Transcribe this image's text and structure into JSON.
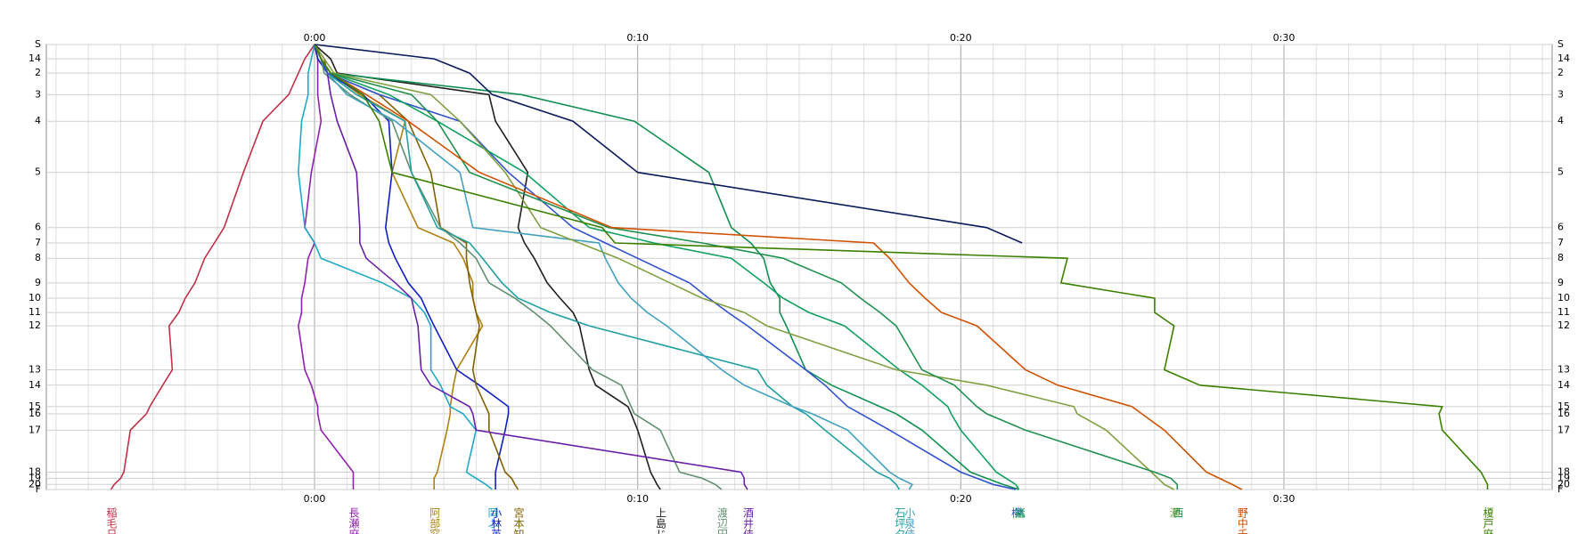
{
  "chart_data": {
    "type": "line",
    "orientation": "vertical-time",
    "grid": true,
    "xlim": [
      -8.3,
      38.3
    ],
    "xticks": [
      {
        "value": 0,
        "label": "0:00"
      },
      {
        "value": 10,
        "label": "0:10"
      },
      {
        "value": 20,
        "label": "0:20"
      },
      {
        "value": 30,
        "label": "0:30"
      }
    ],
    "xminorticks": [
      -8,
      -7,
      -6,
      -5,
      -4,
      -3,
      -2,
      -1,
      0,
      1,
      2,
      3,
      4,
      5,
      6,
      7,
      8,
      9,
      10,
      11,
      12,
      13,
      14,
      15,
      16,
      17,
      18,
      19,
      20,
      21,
      22,
      23,
      24,
      25,
      26,
      27,
      28,
      29,
      30,
      31,
      32,
      33,
      34,
      35,
      36,
      37,
      38
    ],
    "ylim": [
      0,
      435
    ],
    "yticks": [
      {
        "value": 0,
        "label": "S"
      },
      14,
      {
        "value": 28,
        "label": "2"
      },
      {
        "value": 49,
        "label": "3"
      },
      {
        "value": 75,
        "label": "4"
      },
      {
        "value": 125,
        "label": "5"
      },
      {
        "value": 179,
        "label": "6"
      },
      {
        "value": 194,
        "label": "7"
      },
      {
        "value": 209,
        "label": "8"
      },
      {
        "value": 233,
        "label": "9"
      },
      {
        "value": 248,
        "label": "10"
      },
      {
        "value": 262,
        "label": "11"
      },
      {
        "value": 275,
        "label": "12"
      },
      {
        "value": 318,
        "label": "13"
      },
      {
        "value": 333,
        "label": "14"
      },
      {
        "value": 354,
        "label": "15"
      },
      {
        "value": 361,
        "label": "16"
      },
      {
        "value": 377,
        "label": "17"
      },
      {
        "value": 418,
        "label": "18"
      },
      {
        "value": 424,
        "label": "19"
      },
      {
        "value": 430,
        "label": "20"
      },
      {
        "value": 435,
        "label": "F"
      }
    ],
    "series": [
      {
        "name": "稲毛日",
        "color": "#c03048",
        "values": [
          0,
          -0.3,
          -0.5,
          -0.8,
          -1.6,
          -2.2,
          -2.8,
          -3.1,
          -3.4,
          -3.7,
          -4.0,
          -4.2,
          -4.5,
          -4.4,
          -4.7,
          -5.1,
          -5.2,
          -5.7,
          -5.9,
          -6.0,
          -6.2,
          -6.3
        ]
      },
      {
        "name": "長瀬麻",
        "color": "#9020b0",
        "values": [
          0,
          0.1,
          0.1,
          0.1,
          0.2,
          -0.1,
          -0.3,
          0,
          -0.2,
          -0.3,
          -0.4,
          -0.4,
          -0.5,
          -0.3,
          -0.1,
          0.1,
          0.1,
          0.2,
          1.2,
          1.2,
          1.2,
          1.2
        ]
      },
      {
        "name": "阿部窓",
        "color": "#b08010",
        "values": [
          0,
          0.2,
          0.5,
          1.4,
          2.8,
          2.4,
          3.2,
          4.3,
          4.6,
          4.9,
          4.9,
          5.0,
          5.2,
          4.4,
          4.3,
          4.2,
          4.2,
          4.1,
          3.8,
          3.7,
          3.7,
          3.7
        ]
      },
      {
        "name": "岡ふ",
        "color": "#20a8c8",
        "values": [
          0,
          -0.1,
          -0.2,
          -0.2,
          -0.4,
          -0.5,
          -0.3,
          0,
          0.2,
          2.1,
          3.0,
          3.4,
          3.6,
          3.6,
          3.9,
          4.2,
          4.6,
          5.0,
          4.7,
          5.0,
          5.3,
          5.5
        ]
      },
      {
        "name": "小林英",
        "color": "#1020c0",
        "values": [
          0,
          0.1,
          0.4,
          1.5,
          2.3,
          2.4,
          2.2,
          2.3,
          2.5,
          2.9,
          3.3,
          3.5,
          3.7,
          4.4,
          5.1,
          6.0,
          6.0,
          5.9,
          5.6,
          5.6,
          5.6,
          5.6
        ]
      },
      {
        "name": "宮本知",
        "color": "#806000",
        "values": [
          0,
          0.3,
          0.4,
          2.0,
          2.9,
          3.6,
          3.9,
          4.7,
          4.7,
          4.8,
          4.9,
          5.0,
          5.1,
          4.9,
          5.0,
          5.3,
          5.4,
          5.4,
          5.9,
          6.1,
          6.2,
          6.3
        ]
      },
      {
        "name": "上島じ",
        "color": "#202020",
        "values": [
          0,
          0.5,
          0.7,
          5.4,
          5.6,
          6.6,
          6.3,
          6.5,
          6.8,
          7.2,
          7.6,
          8.0,
          8.2,
          8.5,
          8.7,
          9.7,
          9.8,
          10.0,
          10.4,
          10.5,
          10.6,
          10.7
        ]
      },
      {
        "name": "渡辺円",
        "color": "#609070",
        "values": [
          0,
          0.2,
          0.3,
          1.1,
          2.4,
          3.0,
          3.9,
          4.5,
          5.0,
          5.4,
          6.2,
          6.8,
          7.3,
          8.6,
          9.5,
          9.8,
          9.9,
          10.7,
          11.3,
          12.0,
          12.4,
          12.6
        ]
      },
      {
        "name": "酒井佳",
        "color": "#6a1fa8",
        "values": [
          0,
          0.2,
          0.4,
          0.5,
          0.7,
          1.3,
          1.4,
          1.4,
          1.6,
          2.5,
          3.0,
          3.1,
          3.2,
          3.3,
          3.6,
          4.8,
          4.9,
          5.0,
          13.2,
          13.3,
          13.3,
          13.4
        ]
      },
      {
        "name": "石坪夕",
        "color": "#20a0a0",
        "values": [
          0,
          0.2,
          0.4,
          1.3,
          2.8,
          3.0,
          3.8,
          4.8,
          5.2,
          5.8,
          6.3,
          7.3,
          8.5,
          13.7,
          14.0,
          14.8,
          15.2,
          15.8,
          17.4,
          17.8,
          18.0,
          18.1
        ]
      },
      {
        "name": "小泉佳",
        "color": "#40a0c0",
        "values": [
          0,
          0.2,
          0.4,
          1.0,
          2.5,
          4.5,
          4.9,
          8.8,
          9.0,
          9.4,
          9.8,
          10.3,
          10.9,
          12.6,
          13.3,
          14.8,
          15.4,
          16.5,
          17.8,
          18.1,
          18.5,
          18.4
        ]
      },
      {
        "name": "猪",
        "color": "#109050",
        "values": [
          0,
          0.2,
          0.5,
          6.4,
          9.9,
          12.2,
          12.9,
          13.5,
          13.9,
          14.1,
          14.4,
          14.4,
          14.6,
          15.2,
          16.0,
          17.5,
          18.0,
          18.8,
          20.3,
          20.8,
          21.3,
          21.8
        ]
      },
      {
        "name": "柳",
        "color": "#3050d0",
        "values": [
          0,
          0.2,
          0.4,
          2.0,
          4.5,
          6.0,
          8.0,
          9.0,
          10.0,
          11.6,
          12.2,
          12.8,
          13.4,
          15.2,
          15.8,
          16.5,
          16.9,
          17.8,
          20.0,
          20.5,
          21.0,
          21.7
        ]
      },
      {
        "name": "丸",
        "color": "#10a060",
        "values": [
          0,
          0.2,
          0.5,
          2.3,
          3.8,
          6.5,
          8.5,
          10.5,
          12.9,
          13.9,
          14.5,
          15.3,
          16.4,
          18.1,
          18.8,
          19.6,
          19.7,
          20.0,
          21.1,
          21.4,
          21.7,
          21.8
        ]
      },
      {
        "name": "瀬",
        "color": "#80a040",
        "values": [
          0,
          0.3,
          0.6,
          3.6,
          4.5,
          5.9,
          7.0,
          8.2,
          9.4,
          11.0,
          12.0,
          13.3,
          14.0,
          18.0,
          20.8,
          23.5,
          23.6,
          24.5,
          25.9,
          26.1,
          26.3,
          26.6
        ]
      },
      {
        "name": "西",
        "color": "#209050",
        "values": [
          0,
          0.2,
          0.5,
          3.0,
          3.8,
          4.8,
          9.1,
          12.0,
          14.5,
          16.3,
          16.9,
          17.5,
          18.0,
          18.8,
          19.8,
          20.5,
          20.8,
          22.0,
          26.0,
          26.5,
          26.7,
          26.7
        ]
      },
      {
        "name": "野中千",
        "color": "#d05000",
        "values": [
          0,
          0.2,
          0.5,
          1.6,
          2.9,
          5.1,
          9.2,
          17.3,
          17.8,
          18.4,
          18.9,
          19.4,
          20.5,
          22.0,
          23.0,
          25.3,
          25.6,
          26.3,
          27.6,
          28.0,
          28.4,
          28.7
        ]
      },
      {
        "name": "榎戸麻",
        "color": "#3a8000",
        "values": [
          0,
          0.2,
          0.5,
          1.5,
          2.0,
          2.4,
          8.9,
          9.3,
          23.3,
          23.1,
          26.0,
          26.0,
          26.6,
          26.3,
          27.4,
          34.9,
          34.8,
          34.9,
          36.1,
          36.2,
          36.3,
          36.3
        ]
      },
      {
        "color": "#0a1a5a",
        "values": [
          0,
          3.7,
          4.8,
          5.5,
          8.0,
          10.0,
          20.8,
          21.9,
          null,
          null,
          null,
          null,
          null,
          null,
          null,
          null,
          null,
          null,
          null,
          null,
          null,
          null
        ]
      }
    ]
  }
}
